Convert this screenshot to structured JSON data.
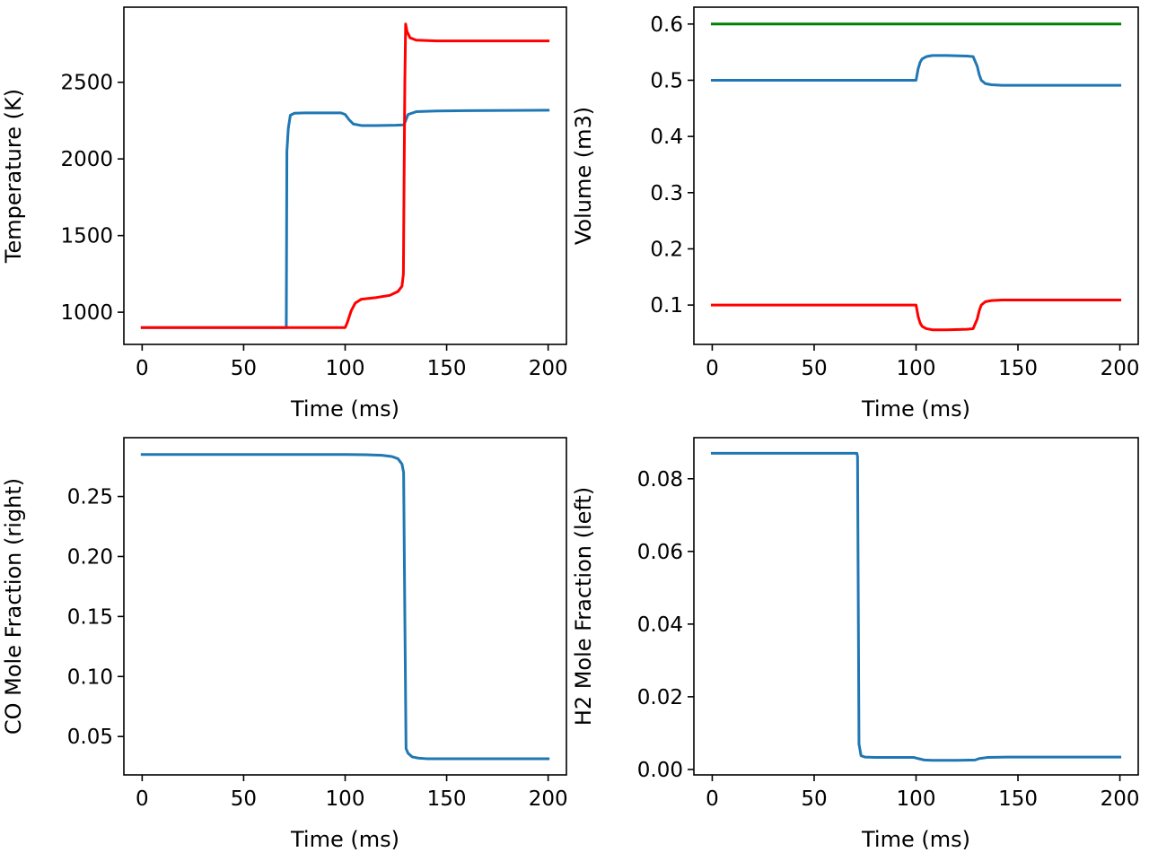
{
  "colors": {
    "blue": "#1f77b4",
    "red": "#ff0000",
    "green": "#008000",
    "axis": "#000000"
  },
  "chart_data": [
    {
      "type": "line",
      "xlabel": "Time (ms)",
      "ylabel": "Temperature (K)",
      "xlim": [
        -9,
        209
      ],
      "ylim": [
        790,
        2990
      ],
      "xticks": [
        0,
        50,
        100,
        150,
        200
      ],
      "xtick_labels": [
        "0",
        "50",
        "100",
        "150",
        "200"
      ],
      "yticks": [
        1000,
        1500,
        2000,
        2500
      ],
      "ytick_labels": [
        "1000",
        "1500",
        "2000",
        "2500"
      ],
      "grid": false,
      "series": [
        {
          "color": "#1f77b4",
          "x": [
            0,
            71,
            71.3,
            72,
            73,
            75,
            80,
            90,
            98,
            100,
            102,
            104,
            108,
            115,
            125,
            129,
            131,
            135,
            145,
            160,
            200
          ],
          "y": [
            900,
            900,
            2050,
            2200,
            2285,
            2298,
            2300,
            2300,
            2300,
            2290,
            2255,
            2228,
            2218,
            2218,
            2220,
            2222,
            2290,
            2308,
            2313,
            2315,
            2318
          ]
        },
        {
          "color": "#ff0000",
          "x": [
            0,
            100,
            101,
            103,
            105,
            108,
            115,
            122,
            126,
            128,
            128.7,
            129,
            129.4,
            129.8,
            130.5,
            132,
            135,
            145,
            160,
            200
          ],
          "y": [
            900,
            900,
            930,
            1010,
            1060,
            1085,
            1095,
            1110,
            1135,
            1170,
            1250,
            1800,
            2500,
            2880,
            2830,
            2790,
            2775,
            2770,
            2770,
            2770
          ]
        }
      ]
    },
    {
      "type": "line",
      "xlabel": "Time (ms)",
      "ylabel": "Volume (m3)",
      "xlim": [
        -9,
        209
      ],
      "ylim": [
        0.03,
        0.63
      ],
      "xticks": [
        0,
        50,
        100,
        150,
        200
      ],
      "xtick_labels": [
        "0",
        "50",
        "100",
        "150",
        "200"
      ],
      "yticks": [
        0.1,
        0.2,
        0.3,
        0.4,
        0.5,
        0.6
      ],
      "ytick_labels": [
        "0.1",
        "0.2",
        "0.3",
        "0.4",
        "0.5",
        "0.6"
      ],
      "grid": false,
      "series": [
        {
          "color": "#008000",
          "x": [
            0,
            200
          ],
          "y": [
            0.6,
            0.6
          ]
        },
        {
          "color": "#1f77b4",
          "x": [
            0,
            100,
            101,
            102,
            103,
            105,
            108,
            115,
            125,
            128,
            130,
            131,
            132,
            134,
            137,
            142,
            150,
            200
          ],
          "y": [
            0.5,
            0.5,
            0.52,
            0.532,
            0.538,
            0.542,
            0.544,
            0.544,
            0.543,
            0.542,
            0.525,
            0.51,
            0.5,
            0.494,
            0.492,
            0.491,
            0.491,
            0.491
          ]
        },
        {
          "color": "#ff0000",
          "x": [
            0,
            100,
            101,
            102,
            103,
            105,
            108,
            115,
            125,
            128,
            130,
            131,
            132,
            134,
            137,
            142,
            150,
            200
          ],
          "y": [
            0.1,
            0.1,
            0.08,
            0.068,
            0.062,
            0.058,
            0.056,
            0.056,
            0.057,
            0.058,
            0.075,
            0.09,
            0.1,
            0.106,
            0.108,
            0.109,
            0.109,
            0.109
          ]
        }
      ]
    },
    {
      "type": "line",
      "xlabel": "Time (ms)",
      "ylabel": "CO Mole Fraction (right)",
      "xlim": [
        -9,
        209
      ],
      "ylim": [
        0.018,
        0.299
      ],
      "xticks": [
        0,
        50,
        100,
        150,
        200
      ],
      "xtick_labels": [
        "0",
        "50",
        "100",
        "150",
        "200"
      ],
      "yticks": [
        0.05,
        0.1,
        0.15,
        0.2,
        0.25
      ],
      "ytick_labels": [
        "0.05",
        "0.10",
        "0.15",
        "0.20",
        "0.25"
      ],
      "grid": false,
      "series": [
        {
          "color": "#1f77b4",
          "x": [
            0,
            100,
            110,
            118,
            123,
            126,
            128,
            128.8,
            129.4,
            130,
            131,
            133,
            136,
            140,
            150,
            200
          ],
          "y": [
            0.285,
            0.285,
            0.2848,
            0.2843,
            0.2833,
            0.2815,
            0.277,
            0.27,
            0.15,
            0.04,
            0.036,
            0.033,
            0.032,
            0.0315,
            0.0315,
            0.0315
          ]
        }
      ]
    },
    {
      "type": "line",
      "xlabel": "Time (ms)",
      "ylabel": "H2 Mole Fraction (left)",
      "xlim": [
        -9,
        209
      ],
      "ylim": [
        -0.0015,
        0.0913
      ],
      "xticks": [
        0,
        50,
        100,
        150,
        200
      ],
      "xtick_labels": [
        "0",
        "50",
        "100",
        "150",
        "200"
      ],
      "yticks": [
        0.0,
        0.02,
        0.04,
        0.06,
        0.08
      ],
      "ytick_labels": [
        "0.00",
        "0.02",
        "0.04",
        "0.06",
        "0.08"
      ],
      "grid": false,
      "series": [
        {
          "color": "#1f77b4",
          "x": [
            0,
            71,
            71.3,
            72,
            73,
            75,
            80,
            99,
            101,
            104,
            108,
            120,
            129,
            131,
            135,
            145,
            200
          ],
          "y": [
            0.087,
            0.087,
            0.086,
            0.007,
            0.0038,
            0.0034,
            0.0033,
            0.0033,
            0.003,
            0.0026,
            0.0025,
            0.0025,
            0.0026,
            0.003,
            0.0033,
            0.0034,
            0.0034
          ]
        }
      ]
    }
  ]
}
